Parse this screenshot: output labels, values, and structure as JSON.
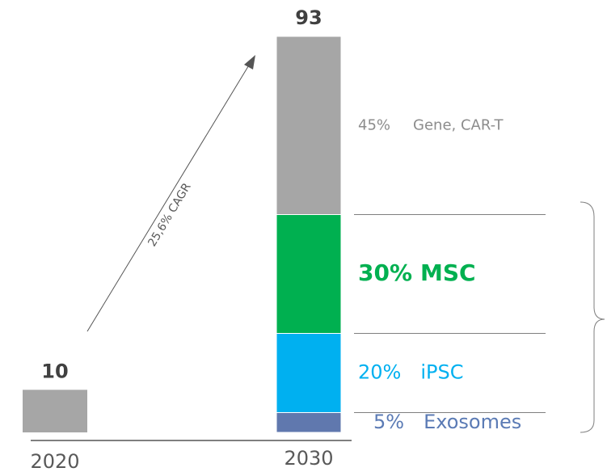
{
  "chart_data": {
    "type": "share-bar",
    "categories": [
      "2020",
      "2030"
    ],
    "values": [
      10,
      93
    ],
    "color": "#a6a6a6",
    "annotation": "25,6% CAGR",
    "segment_names": [
      "Exosomes",
      "iPSC",
      "MSC",
      "Gene, CAR-T"
    ],
    "shares": [
      5,
      20,
      30,
      45
    ],
    "share_labels": [
      "5%",
      "20%",
      "30%",
      "45%"
    ],
    "segment_colors": [
      "#6078ae",
      "#00b0f0",
      "#00b050",
      "#a6a6a6"
    ],
    "label_colors": [
      "#5b7bb5",
      "#00b0f0",
      "#00b050",
      "#8c8c8c"
    ],
    "highlight": "MSC"
  }
}
